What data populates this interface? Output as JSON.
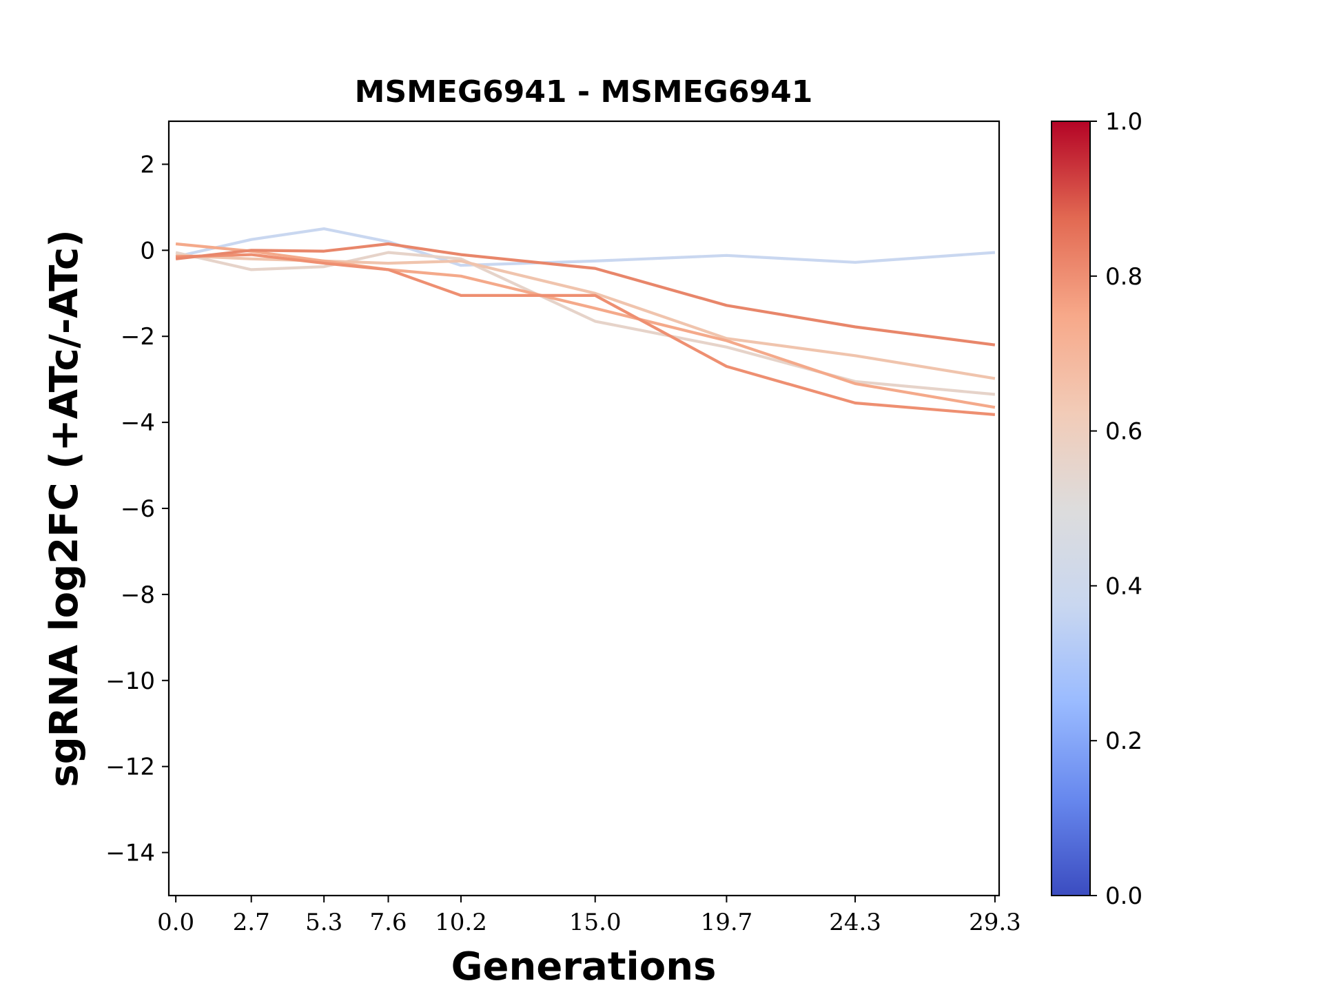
{
  "chart_data": {
    "type": "line",
    "title": "MSMEG6941 - MSMEG6941",
    "xlabel": "Generations",
    "ylabel": "sgRNA log2FC (+ATc/-ATc)",
    "xlim": [
      -0.25,
      29.45
    ],
    "ylim": [
      -15,
      3
    ],
    "x_ticks": [
      0.0,
      2.7,
      5.3,
      7.6,
      10.2,
      15.0,
      19.7,
      24.3,
      29.3
    ],
    "x_tick_labels": [
      "0.0",
      "2.7",
      "5.3",
      "7.6",
      "10.2",
      "15.0",
      "19.7",
      "24.3",
      "29.3"
    ],
    "y_ticks": [
      2,
      0,
      -2,
      -4,
      -6,
      -8,
      -10,
      -12,
      -14
    ],
    "y_tick_labels": [
      "2",
      "0",
      "−2",
      "−4",
      "−6",
      "−8",
      "−10",
      "−12",
      "−14"
    ],
    "grid": false,
    "colorbar": {
      "colormap": "coolwarm",
      "range": [
        0,
        1
      ],
      "ticks": [
        0.0,
        0.2,
        0.4,
        0.6,
        0.8,
        1.0
      ],
      "tick_labels": [
        "0.0",
        "0.2",
        "0.4",
        "0.6",
        "0.8",
        "1.0"
      ],
      "stops": [
        "#3b4cc0",
        "#6788ee",
        "#9abbff",
        "#c9d7f0",
        "#dddcdc",
        "#f2cbb7",
        "#f7a889",
        "#e26952",
        "#b40426"
      ]
    },
    "x": [
      0.0,
      2.7,
      5.3,
      7.6,
      10.2,
      15.0,
      19.7,
      24.3,
      29.3
    ],
    "series": [
      {
        "color": "#c9d7f0",
        "value": 0.42,
        "values": [
          -0.15,
          0.25,
          0.5,
          0.2,
          -0.35,
          -0.25,
          -0.12,
          -0.28,
          -0.05
        ]
      },
      {
        "color": "#e6d3c9",
        "value": 0.57,
        "values": [
          -0.05,
          -0.45,
          -0.38,
          -0.05,
          -0.2,
          -1.65,
          -2.25,
          -3.05,
          -3.35
        ]
      },
      {
        "color": "#f0c4ad",
        "value": 0.62,
        "values": [
          -0.12,
          -0.2,
          -0.25,
          -0.3,
          -0.25,
          -1.0,
          -2.05,
          -2.45,
          -2.98
        ]
      },
      {
        "color": "#f4a98a",
        "value": 0.71,
        "values": [
          0.15,
          -0.02,
          -0.25,
          -0.45,
          -0.6,
          -1.35,
          -2.1,
          -3.1,
          -3.65
        ]
      },
      {
        "color": "#ee8f71",
        "value": 0.77,
        "values": [
          -0.15,
          -0.1,
          -0.3,
          -0.45,
          -1.05,
          -1.05,
          -2.7,
          -3.55,
          -3.82
        ]
      },
      {
        "color": "#e8866a",
        "value": 0.79,
        "values": [
          -0.2,
          0.0,
          -0.02,
          0.15,
          -0.1,
          -0.42,
          -1.28,
          -1.78,
          -2.2
        ]
      }
    ]
  }
}
